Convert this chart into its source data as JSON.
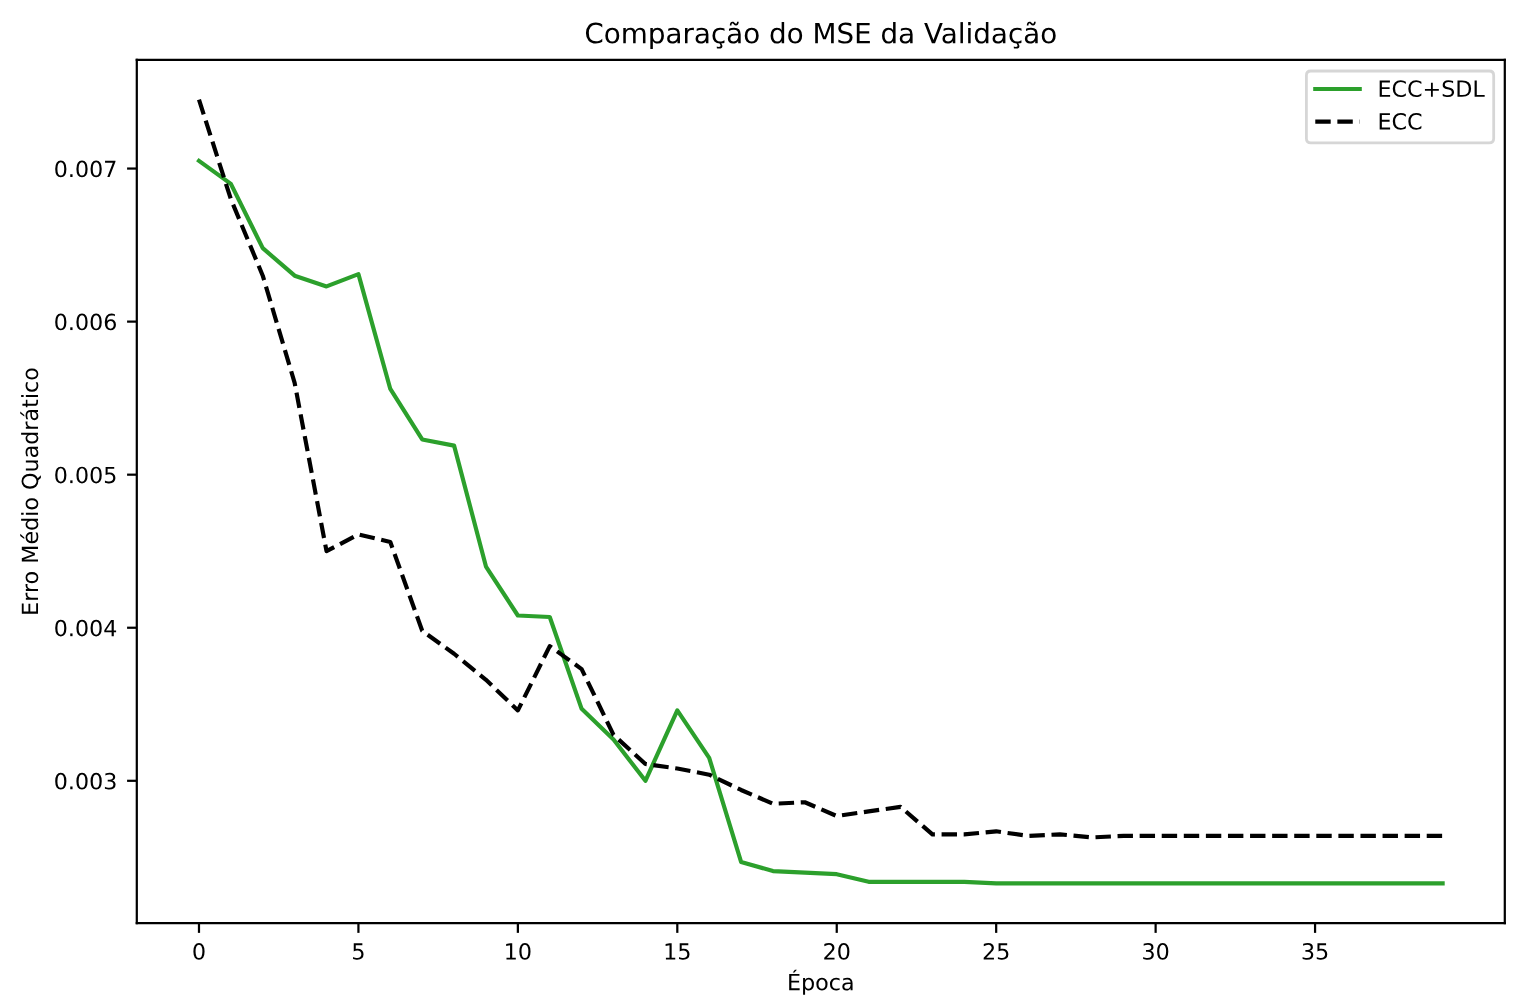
{
  "chart_data": {
    "type": "line",
    "title": "Comparação do MSE da Validação",
    "xlabel": "Época",
    "ylabel": "Erro Médio Quadrático",
    "x": [
      0,
      1,
      2,
      3,
      4,
      5,
      6,
      7,
      8,
      9,
      10,
      11,
      12,
      13,
      14,
      15,
      16,
      17,
      18,
      19,
      20,
      21,
      22,
      23,
      24,
      25,
      26,
      27,
      28,
      29,
      30,
      31,
      32,
      33,
      34,
      35,
      36,
      37,
      38,
      39
    ],
    "series": [
      {
        "name": "ECC+SDL",
        "color": "#2ca02c",
        "line_style": "solid",
        "values": [
          0.00705,
          0.0069,
          0.00648,
          0.0063,
          0.00623,
          0.00631,
          0.00556,
          0.00523,
          0.00519,
          0.0044,
          0.00408,
          0.00407,
          0.00347,
          0.00327,
          0.003,
          0.00346,
          0.00315,
          0.00247,
          0.00241,
          0.0024,
          0.00239,
          0.00234,
          0.00234,
          0.00234,
          0.00234,
          0.00233,
          0.00233,
          0.00233,
          0.00233,
          0.00233,
          0.00233,
          0.00233,
          0.00233,
          0.00233,
          0.00233,
          0.00233,
          0.00233,
          0.00233,
          0.00233,
          0.00233
        ]
      },
      {
        "name": "ECC",
        "color": "#000000",
        "line_style": "dashed",
        "values": [
          0.00745,
          0.0068,
          0.0063,
          0.0056,
          0.0045,
          0.00461,
          0.00456,
          0.00398,
          0.00383,
          0.00366,
          0.00346,
          0.00388,
          0.00373,
          0.0033,
          0.00311,
          0.00308,
          0.00304,
          0.00294,
          0.00285,
          0.00286,
          0.00277,
          0.0028,
          0.00283,
          0.00265,
          0.00265,
          0.00267,
          0.00264,
          0.00265,
          0.00263,
          0.00264,
          0.00264,
          0.00264,
          0.00264,
          0.00264,
          0.00264,
          0.00264,
          0.00264,
          0.00264,
          0.00264,
          0.00264
        ]
      }
    ],
    "xlim": [
      -1.95,
      40.95
    ],
    "xticks": [
      0,
      5,
      10,
      15,
      20,
      25,
      30,
      35
    ],
    "ylim": [
      0.00207,
      0.00771
    ],
    "yticks": [
      0.003,
      0.004,
      0.005,
      0.006,
      0.007
    ],
    "grid": false,
    "legend": "top right",
    "marker": "none"
  }
}
